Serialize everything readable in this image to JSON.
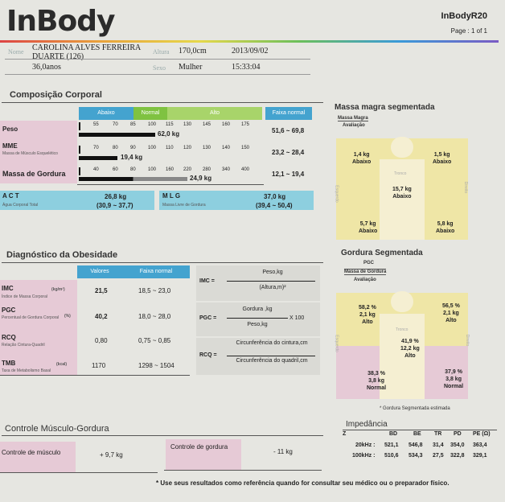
{
  "header": {
    "logo": "InBody",
    "model": "InBodyR20",
    "page": "Page : 1 of 1"
  },
  "patient": {
    "name_label": "Nome",
    "name_line1": "CAROLINA ALVES FERREIRA",
    "name_line2": "DUARTE  (126)",
    "age": "36,0anos",
    "height_label": "Altura",
    "height": "170,0cm",
    "sex_label": "Sexo",
    "sex": "Mulher",
    "date": "2013/09/02",
    "time": "15:33:04"
  },
  "composition": {
    "title": "Composição Corporal",
    "col_abaixo": "Abaixo",
    "col_normal": "Normal",
    "col_alto": "Alto",
    "col_faixa": "Faixa normal",
    "rows": [
      {
        "label": "Peso",
        "sub": "",
        "ticks": [
          "55",
          "70",
          "85",
          "100",
          "115",
          "130",
          "145",
          "160",
          "175"
        ],
        "value": "62,0 kg",
        "range": "51,6 ~ 69,8",
        "fraction": 0.4
      },
      {
        "label": "MME",
        "sub": "Massa de Músculo Esquelético",
        "ticks": [
          "70",
          "80",
          "90",
          "100",
          "110",
          "120",
          "130",
          "140",
          "150"
        ],
        "value": "19,4 kg",
        "range": "23,2 ~ 28,4",
        "fraction": 0.2
      },
      {
        "label": "Massa de Gordura",
        "sub": "",
        "ticks": [
          "40",
          "60",
          "80",
          "100",
          "160",
          "220",
          "280",
          "340",
          "400"
        ],
        "value": "24,9 kg",
        "range": "12,1 ~ 19,4",
        "fraction": 0.6
      }
    ],
    "act_label": "A C T",
    "act_sub": "Água Corporal Total",
    "act_value": "26,8 kg",
    "act_range": "(30,9 ~ 37,7)",
    "mlg_label": "M L G",
    "mlg_sub": "Massa Livre de Gordura",
    "mlg_value": "37,0 kg",
    "mlg_range": "(39,4 ~ 50,4)"
  },
  "lean_segmental": {
    "title": "Massa magra segmentada",
    "header_top": "Massa Magra",
    "header_bottom": "Avaliação",
    "left_arm_value": "1,4 kg",
    "left_arm_eval": "Abaixo",
    "right_arm_value": "1,5 kg",
    "right_arm_eval": "Abaixo",
    "trunk_label": "Tronco",
    "trunk_value": "15,7 kg",
    "trunk_eval": "Abaixo",
    "left_leg_value": "5,7 kg",
    "left_leg_eval": "Abaixo",
    "right_leg_value": "5,8 kg",
    "right_leg_eval": "Abaixo",
    "side_left": "Esquerdo",
    "side_right": "Direito"
  },
  "obesity": {
    "title": "Diagnóstico da Obesidade",
    "col_values": "Valores",
    "col_range": "Faixa normal",
    "rows": [
      {
        "label": "IMC",
        "unit": "(kg/m²)",
        "sub": "Índice de Massa Corporal",
        "value": "21,5",
        "range": "18,5 ~ 23,0"
      },
      {
        "label": "PGC",
        "unit": "(%)",
        "sub": "Percentual de Gordura Corporal",
        "value": "40,2",
        "range": "18,0 ~ 28,0"
      },
      {
        "label": "RCQ",
        "unit": "",
        "sub": "Relação Cintura-Quadril",
        "value": "0,80",
        "range": "0,75 ~ 0,85"
      },
      {
        "label": "TMB",
        "unit": "(kcal)",
        "sub": "Taxa de Metabolismo Basal",
        "value": "1170",
        "range": "1298 ~ 1504"
      }
    ],
    "imc_formula": {
      "lhs": "IMC =",
      "num": "Peso,kg",
      "den": "(Altura,m)²"
    },
    "pgc_formula": {
      "lhs": "PGC =",
      "num": "Gordura ,kg",
      "den": "Peso,kg",
      "mult": "X 100"
    },
    "rcq_formula": {
      "lhs": "RCQ =",
      "num": "Circunferência do cintura,cm",
      "den": "Circunferência do quadril,cm"
    }
  },
  "fat_segmental": {
    "title": "Gordura Segmentada",
    "header_top": "PGC",
    "header_mid": "Massa de Gordura",
    "header_bottom": "Avaliação",
    "left_arm_pct": "58,2 %",
    "left_arm_kg": "2,1 kg",
    "left_arm_eval": "Alto",
    "right_arm_pct": "56,5 %",
    "right_arm_kg": "2,1 kg",
    "right_arm_eval": "Alto",
    "trunk_label": "Tronco",
    "trunk_pct": "41,9 %",
    "trunk_kg": "12,2 kg",
    "trunk_eval": "Alto",
    "left_leg_pct": "38,3 %",
    "left_leg_kg": "3,8 kg",
    "left_leg_eval": "Normal",
    "right_leg_pct": "37,9 %",
    "right_leg_kg": "3,8 kg",
    "right_leg_eval": "Normal",
    "side_left": "Esquerdo",
    "side_right": "Direito",
    "note": "* Gordura Segmentada estimada"
  },
  "control": {
    "title": "Controle Músculo-Gordura",
    "muscle_label": "Controle de músculo",
    "muscle_value": "+ 9,7 kg",
    "fat_label": "Controle de gordura",
    "fat_value": "- 11 kg"
  },
  "impedance": {
    "title": "Impedância",
    "headers": [
      "Z",
      "BD",
      "BE",
      "TR",
      "PD",
      "PE (Ω)"
    ],
    "rows": [
      [
        "20kHz :",
        "521,1",
        "546,8",
        "31,4",
        "354,0",
        "363,4"
      ],
      [
        "100kHz :",
        "510,6",
        "534,3",
        "27,5",
        "322,8",
        "329,1"
      ]
    ]
  },
  "footer": {
    "note": "* Use seus resultados como referência quando for consultar seu médico ou o preparador físico."
  },
  "colors": {
    "blue": "#44a3cf",
    "green": "#7fc241",
    "lightblue": "#8dcfdf",
    "yellow": "#efe6a6",
    "pink": "#e6cad6"
  }
}
